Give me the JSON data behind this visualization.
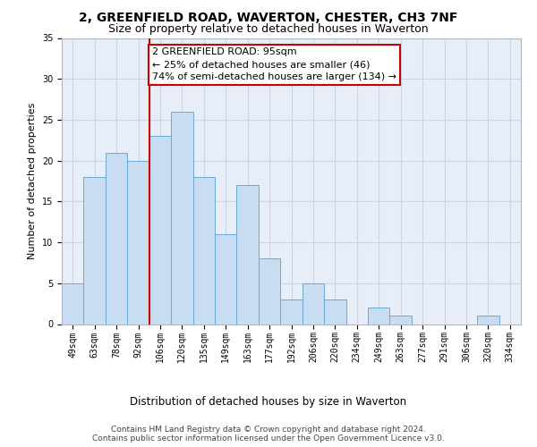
{
  "title": "2, GREENFIELD ROAD, WAVERTON, CHESTER, CH3 7NF",
  "subtitle": "Size of property relative to detached houses in Waverton",
  "xlabel": "Distribution of detached houses by size in Waverton",
  "ylabel": "Number of detached properties",
  "bar_labels": [
    "49sqm",
    "63sqm",
    "78sqm",
    "92sqm",
    "106sqm",
    "120sqm",
    "135sqm",
    "149sqm",
    "163sqm",
    "177sqm",
    "192sqm",
    "206sqm",
    "220sqm",
    "234sqm",
    "249sqm",
    "263sqm",
    "277sqm",
    "291sqm",
    "306sqm",
    "320sqm",
    "334sqm"
  ],
  "bar_values": [
    5,
    18,
    21,
    20,
    23,
    26,
    18,
    11,
    17,
    8,
    3,
    5,
    3,
    0,
    2,
    1,
    0,
    0,
    0,
    1,
    0
  ],
  "bar_color": "#c9ddf2",
  "bar_edge_color": "#6aaad4",
  "vline_x": 3.5,
  "vline_color": "#cc0000",
  "annotation_text": "2 GREENFIELD ROAD: 95sqm\n← 25% of detached houses are smaller (46)\n74% of semi-detached houses are larger (134) →",
  "annotation_box_color": "#ffffff",
  "annotation_box_edge_color": "#cc0000",
  "ylim": [
    0,
    35
  ],
  "yticks": [
    0,
    5,
    10,
    15,
    20,
    25,
    30,
    35
  ],
  "bg_color": "#ffffff",
  "plot_bg_color": "#e8eef8",
  "grid_color": "#c8d4e8",
  "footer_line1": "Contains HM Land Registry data © Crown copyright and database right 2024.",
  "footer_line2": "Contains public sector information licensed under the Open Government Licence v3.0.",
  "title_fontsize": 10,
  "subtitle_fontsize": 9,
  "ylabel_fontsize": 8,
  "xlabel_fontsize": 8.5,
  "tick_fontsize": 7,
  "annotation_fontsize": 8,
  "footer_fontsize": 6.5
}
